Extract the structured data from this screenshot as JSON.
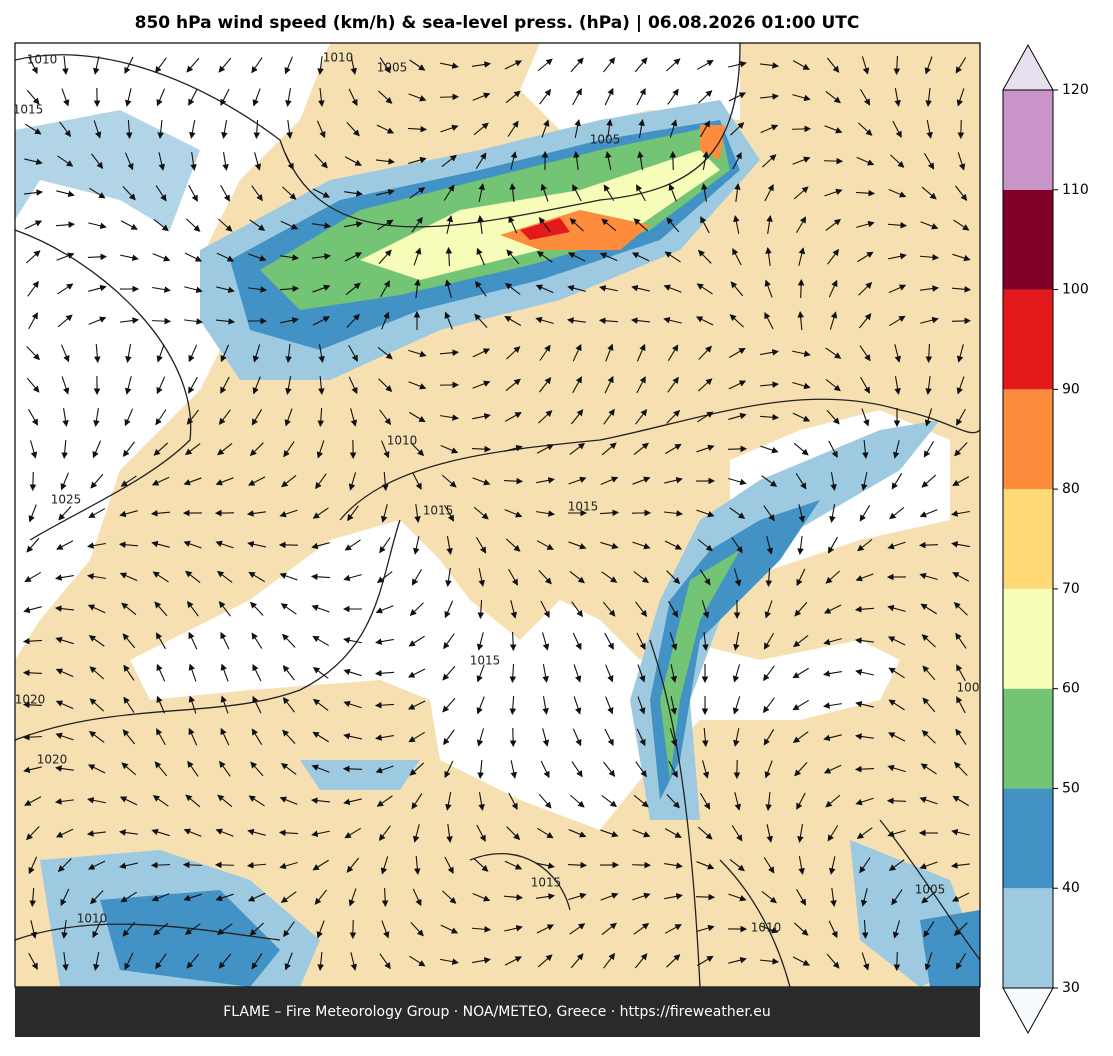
{
  "title": "850 hPa wind speed (km/h) & sea-level press. (hPa)  |  06.08.2026 01:00 UTC",
  "colorbar": {
    "ticks": [
      30,
      40,
      50,
      60,
      70,
      80,
      90,
      100,
      110,
      120
    ],
    "colors": [
      "#9ecae1",
      "#4292c6",
      "#74c476",
      "#f7fcb9",
      "#fed976",
      "#fd8d3c",
      "#e31a1c",
      "#800026",
      "#c994c7"
    ],
    "under_color": "#f7fbff",
    "over_color": "#e7e1ef"
  },
  "isobar_labels": [
    "1010",
    "1015",
    "1010",
    "1005",
    "1005",
    "1010",
    "1015",
    "1015",
    "1025",
    "1020",
    "1020",
    "1015",
    "1015",
    "1010",
    "1010",
    "1005",
    "100"
  ],
  "footer": "FLAME – Fire Meteorology Group · NOA/METEO, Greece · https://fireweather.eu"
}
